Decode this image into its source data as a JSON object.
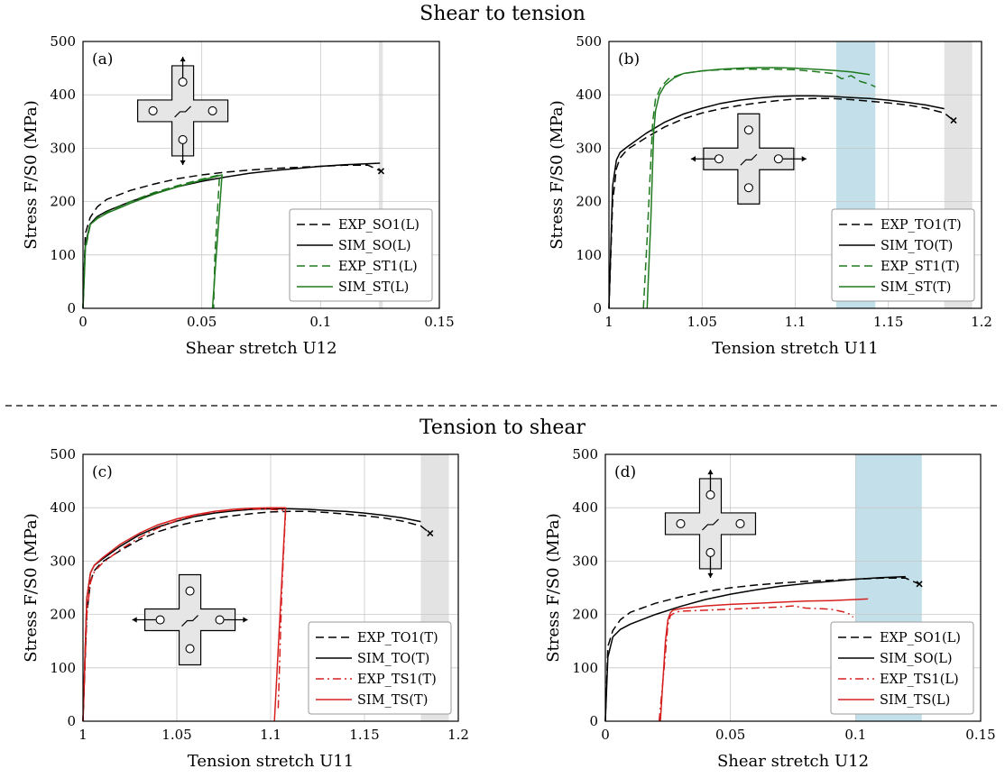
{
  "headings": {
    "top": "Shear to tension",
    "bottom": "Tension to shear"
  },
  "colors": {
    "exp_so_to": "#000000",
    "sim_so_to": "#000000",
    "st": "#1f7a1f",
    "ts": "#d62020",
    "gray_band": "#e3e3e3",
    "blue_band": "#c3e0ea"
  },
  "chart_data": [
    {
      "panel": "(a)",
      "type": "line",
      "xlabel": "Shear stretch U12",
      "ylabel": "Stress F/S0 (MPa)",
      "xlim": [
        0,
        0.15
      ],
      "ylim": [
        0,
        500
      ],
      "xticks": [
        "0",
        "0.05",
        "0.1",
        "0.15"
      ],
      "xtick_values": [
        0,
        0.05,
        0.1,
        0.15
      ],
      "yticks": [
        "0",
        "100",
        "200",
        "300",
        "400",
        "500"
      ],
      "ytick_values": [
        0,
        100,
        200,
        300,
        400,
        500
      ],
      "grid": true,
      "legend_position": "lower-right",
      "icon": "cross-specimen-vertical-arrows",
      "bands": [
        {
          "color": "gray",
          "x": [
            0.1245,
            0.1262
          ]
        }
      ],
      "failure_marker": {
        "x": 0.1255,
        "y": 257
      },
      "series": [
        {
          "name": "EXP_SO1(L)",
          "style": "dashed",
          "color": "#000000",
          "x": [
            0,
            0.001,
            0.003,
            0.006,
            0.01,
            0.02,
            0.03,
            0.04,
            0.05,
            0.06,
            0.07,
            0.08,
            0.09,
            0.1,
            0.11,
            0.12,
            0.1255
          ],
          "y": [
            0,
            140,
            170,
            190,
            204,
            221,
            233,
            243,
            250,
            255,
            259,
            262,
            264,
            266,
            268,
            268,
            257
          ]
        },
        {
          "name": "SIM_SO(L)",
          "style": "solid",
          "color": "#000000",
          "x": [
            0,
            0.001,
            0.003,
            0.006,
            0.01,
            0.02,
            0.03,
            0.04,
            0.05,
            0.06,
            0.07,
            0.08,
            0.09,
            0.1,
            0.11,
            0.12,
            0.125
          ],
          "y": [
            0,
            120,
            158,
            172,
            182,
            200,
            215,
            228,
            238,
            246,
            253,
            258,
            262,
            266,
            269,
            271,
            272
          ]
        },
        {
          "name": "EXP_ST1(L)",
          "style": "dashed",
          "color": "#1f7a1f",
          "x": [
            0,
            0.001,
            0.003,
            0.006,
            0.01,
            0.02,
            0.03,
            0.04,
            0.05,
            0.0575,
            0.0555,
            0.055
          ],
          "y": [
            0,
            110,
            155,
            170,
            180,
            200,
            217,
            230,
            242,
            250,
            100,
            0
          ]
        },
        {
          "name": "SIM_ST(L)",
          "style": "solid",
          "color": "#1f7a1f",
          "x": [
            0,
            0.001,
            0.003,
            0.006,
            0.01,
            0.02,
            0.03,
            0.04,
            0.05,
            0.0585,
            0.0545
          ],
          "y": [
            0,
            115,
            157,
            168,
            178,
            197,
            214,
            228,
            240,
            250,
            0
          ]
        }
      ]
    },
    {
      "panel": "(b)",
      "type": "line",
      "xlabel": "Tension stretch U11",
      "ylabel": "Stress F/S0 (MPa)",
      "xlim": [
        1,
        1.2
      ],
      "ylim": [
        0,
        500
      ],
      "xticks": [
        "1",
        "1.05",
        "1.1",
        "1.15",
        "1.2"
      ],
      "xtick_values": [
        1,
        1.05,
        1.1,
        1.15,
        1.2
      ],
      "yticks": [
        "0",
        "100",
        "200",
        "300",
        "400",
        "500"
      ],
      "ytick_values": [
        0,
        100,
        200,
        300,
        400,
        500
      ],
      "grid": true,
      "legend_position": "lower-right",
      "icon": "cross-specimen-horizontal-arrows",
      "bands": [
        {
          "color": "blue",
          "x": [
            1.122,
            1.143
          ]
        },
        {
          "color": "gray",
          "x": [
            1.18,
            1.195
          ]
        }
      ],
      "failure_marker": {
        "x": 1.185,
        "y": 352
      },
      "series": [
        {
          "name": "EXP_TO1(T)",
          "style": "dashed",
          "color": "#000000",
          "x": [
            1,
            1.002,
            1.004,
            1.006,
            1.01,
            1.02,
            1.03,
            1.04,
            1.05,
            1.06,
            1.07,
            1.08,
            1.09,
            1.1,
            1.11,
            1.12,
            1.13,
            1.14,
            1.15,
            1.16,
            1.17,
            1.18,
            1.185
          ],
          "y": [
            0,
            200,
            262,
            282,
            298,
            320,
            340,
            355,
            366,
            374,
            380,
            385,
            389,
            392,
            393,
            393,
            391,
            388,
            385,
            381,
            375,
            366,
            352
          ]
        },
        {
          "name": "SIM_TO(T)",
          "style": "solid",
          "color": "#000000",
          "x": [
            1,
            1.002,
            1.004,
            1.006,
            1.01,
            1.02,
            1.03,
            1.04,
            1.05,
            1.06,
            1.07,
            1.08,
            1.09,
            1.1,
            1.11,
            1.12,
            1.13,
            1.14,
            1.15,
            1.16,
            1.17,
            1.18
          ],
          "y": [
            0,
            230,
            278,
            292,
            303,
            328,
            349,
            364,
            375,
            384,
            390,
            394,
            397,
            398,
            398,
            397,
            395,
            393,
            390,
            386,
            381,
            374
          ]
        },
        {
          "name": "EXP_ST1(T)",
          "style": "dashed",
          "color": "#1f7a1f",
          "x": [
            1.0185,
            1.0205,
            1.0225,
            1.0235,
            1.025,
            1.028,
            1.032,
            1.04,
            1.05,
            1.06,
            1.07,
            1.08,
            1.09,
            1.1,
            1.11,
            1.12,
            1.125,
            1.13,
            1.135,
            1.14,
            1.143
          ],
          "y": [
            0,
            130,
            280,
            350,
            392,
            415,
            430,
            440,
            445,
            447,
            448,
            448,
            448,
            447,
            444,
            440,
            430,
            436,
            425,
            420,
            415
          ]
        },
        {
          "name": "SIM_ST(T)",
          "style": "solid",
          "color": "#1f7a1f",
          "x": [
            1.0205,
            1.0225,
            1.024,
            1.025,
            1.027,
            1.03,
            1.035,
            1.04,
            1.05,
            1.06,
            1.07,
            1.08,
            1.09,
            1.1,
            1.11,
            1.12,
            1.13,
            1.14
          ],
          "y": [
            0,
            170,
            330,
            370,
            400,
            418,
            432,
            440,
            445,
            448,
            450,
            451,
            451,
            450,
            448,
            446,
            443,
            438
          ]
        }
      ]
    },
    {
      "panel": "(c)",
      "type": "line",
      "xlabel": "Tension stretch U11",
      "ylabel": "Stress F/S0 (MPa)",
      "xlim": [
        1,
        1.2
      ],
      "ylim": [
        0,
        500
      ],
      "xticks": [
        "1",
        "1.05",
        "1.1",
        "1.15",
        "1.2"
      ],
      "xtick_values": [
        1,
        1.05,
        1.1,
        1.15,
        1.2
      ],
      "yticks": [
        "0",
        "100",
        "200",
        "300",
        "400",
        "500"
      ],
      "ytick_values": [
        0,
        100,
        200,
        300,
        400,
        500
      ],
      "grid": true,
      "legend_position": "lower-right",
      "icon": "cross-specimen-horizontal-arrows",
      "bands": [
        {
          "color": "gray",
          "x": [
            1.18,
            1.195
          ]
        }
      ],
      "failure_marker": {
        "x": 1.185,
        "y": 352
      },
      "series": [
        {
          "name": "EXP_TO1(T)",
          "style": "dashed",
          "color": "#000000",
          "x": [
            1,
            1.002,
            1.004,
            1.006,
            1.01,
            1.02,
            1.03,
            1.04,
            1.05,
            1.06,
            1.07,
            1.08,
            1.09,
            1.1,
            1.11,
            1.12,
            1.13,
            1.14,
            1.15,
            1.16,
            1.17,
            1.18,
            1.185
          ],
          "y": [
            0,
            200,
            262,
            282,
            298,
            320,
            340,
            355,
            366,
            374,
            380,
            385,
            389,
            392,
            393,
            393,
            391,
            388,
            385,
            381,
            375,
            366,
            352
          ]
        },
        {
          "name": "SIM_TO(T)",
          "style": "solid",
          "color": "#000000",
          "x": [
            1,
            1.002,
            1.004,
            1.006,
            1.01,
            1.02,
            1.03,
            1.04,
            1.05,
            1.06,
            1.07,
            1.08,
            1.09,
            1.1,
            1.11,
            1.12,
            1.13,
            1.14,
            1.15,
            1.16,
            1.17,
            1.18
          ],
          "y": [
            0,
            230,
            278,
            292,
            303,
            328,
            349,
            364,
            375,
            384,
            390,
            394,
            397,
            398,
            398,
            397,
            395,
            393,
            390,
            386,
            381,
            374
          ]
        },
        {
          "name": "EXP_TS1(T)",
          "style": "dashdot",
          "color": "#d62020",
          "x": [
            1,
            1.002,
            1.004,
            1.006,
            1.01,
            1.02,
            1.03,
            1.04,
            1.05,
            1.06,
            1.07,
            1.08,
            1.09,
            1.1,
            1.108,
            1.106,
            1.104
          ],
          "y": [
            0,
            200,
            260,
            280,
            295,
            322,
            344,
            362,
            376,
            386,
            392,
            396,
            398,
            397,
            395,
            250,
            20
          ]
        },
        {
          "name": "SIM_TS(T)",
          "style": "solid",
          "color": "#d62020",
          "x": [
            1,
            1.002,
            1.004,
            1.006,
            1.01,
            1.02,
            1.03,
            1.04,
            1.05,
            1.06,
            1.07,
            1.08,
            1.09,
            1.1,
            1.108,
            1.102
          ],
          "y": [
            0,
            230,
            278,
            292,
            305,
            332,
            352,
            368,
            379,
            387,
            393,
            397,
            399,
            400,
            400,
            0
          ]
        }
      ]
    },
    {
      "panel": "(d)",
      "type": "line",
      "xlabel": "Shear stretch U12",
      "ylabel": "Stress F/S0 (MPa)",
      "xlim": [
        0,
        0.15
      ],
      "ylim": [
        0,
        500
      ],
      "xticks": [
        "0",
        "0.05",
        "0.1",
        "0.15"
      ],
      "xtick_values": [
        0,
        0.05,
        0.1,
        0.15
      ],
      "yticks": [
        "0",
        "100",
        "200",
        "300",
        "400",
        "500"
      ],
      "ytick_values": [
        0,
        100,
        200,
        300,
        400,
        500
      ],
      "grid": true,
      "legend_position": "lower-right",
      "icon": "cross-specimen-vertical-arrows",
      "bands": [
        {
          "color": "blue",
          "x": [
            0.1,
            0.1265
          ]
        }
      ],
      "failure_marker": {
        "x": 0.1255,
        "y": 257
      },
      "series": [
        {
          "name": "EXP_SO1(L)",
          "style": "dashed",
          "color": "#000000",
          "x": [
            0,
            0.001,
            0.003,
            0.006,
            0.01,
            0.02,
            0.03,
            0.04,
            0.05,
            0.06,
            0.07,
            0.08,
            0.09,
            0.1,
            0.11,
            0.12,
            0.1255
          ],
          "y": [
            0,
            140,
            170,
            190,
            204,
            221,
            233,
            243,
            250,
            255,
            259,
            262,
            264,
            266,
            268,
            268,
            257
          ]
        },
        {
          "name": "SIM_SO(L)",
          "style": "solid",
          "color": "#000000",
          "x": [
            0,
            0.001,
            0.003,
            0.006,
            0.01,
            0.02,
            0.03,
            0.04,
            0.05,
            0.06,
            0.07,
            0.08,
            0.09,
            0.1,
            0.11,
            0.12
          ],
          "y": [
            0,
            120,
            158,
            172,
            182,
            200,
            215,
            228,
            238,
            246,
            253,
            258,
            262,
            266,
            269,
            271
          ]
        },
        {
          "name": "EXP_TS1(L)",
          "style": "dashdot",
          "color": "#d62020",
          "x": [
            0.0215,
            0.0235,
            0.025,
            0.026,
            0.028,
            0.03,
            0.04,
            0.05,
            0.06,
            0.07,
            0.075,
            0.08,
            0.09,
            0.095,
            0.098,
            0.099
          ],
          "y": [
            0,
            100,
            180,
            198,
            204,
            206,
            208,
            210,
            212,
            214,
            216,
            212,
            210,
            205,
            200,
            195
          ]
        },
        {
          "name": "SIM_TS(L)",
          "style": "solid",
          "color": "#d62020",
          "x": [
            0.022,
            0.024,
            0.025,
            0.026,
            0.027,
            0.03,
            0.04,
            0.05,
            0.06,
            0.07,
            0.08,
            0.09,
            0.1,
            0.105
          ],
          "y": [
            0,
            150,
            190,
            203,
            208,
            211,
            216,
            219,
            221,
            223,
            225,
            226,
            228,
            229
          ]
        }
      ]
    }
  ]
}
